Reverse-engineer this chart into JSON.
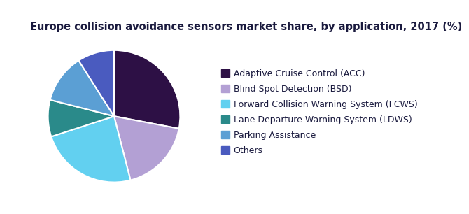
{
  "title": "Europe collision avoidance sensors market share, by application, 2017 (%)",
  "slices": [
    {
      "label": "Adaptive Cruise Control (ACC)",
      "value": 28,
      "color": "#2d1045"
    },
    {
      "label": "Blind Spot Detection (BSD)",
      "value": 18,
      "color": "#b3a0d4"
    },
    {
      "label": "Forward Collision Warning System (FCWS)",
      "value": 24,
      "color": "#62d0f0"
    },
    {
      "label": "Lane Departure Warning System (LDWS)",
      "value": 9,
      "color": "#2a8a8a"
    },
    {
      "label": "Parking Assistance",
      "value": 12,
      "color": "#5b9fd4"
    },
    {
      "label": "Others",
      "value": 9,
      "color": "#4a5bbf"
    }
  ],
  "title_color": "#1a1a3e",
  "title_fontsize": 10.5,
  "legend_fontsize": 9,
  "background_color": "#ffffff",
  "startangle": 90,
  "top_bar_color": "#5b2d82",
  "left_accent_color": "#3d1060",
  "wedge_edge_color": "#ffffff",
  "wedge_linewidth": 1.5
}
